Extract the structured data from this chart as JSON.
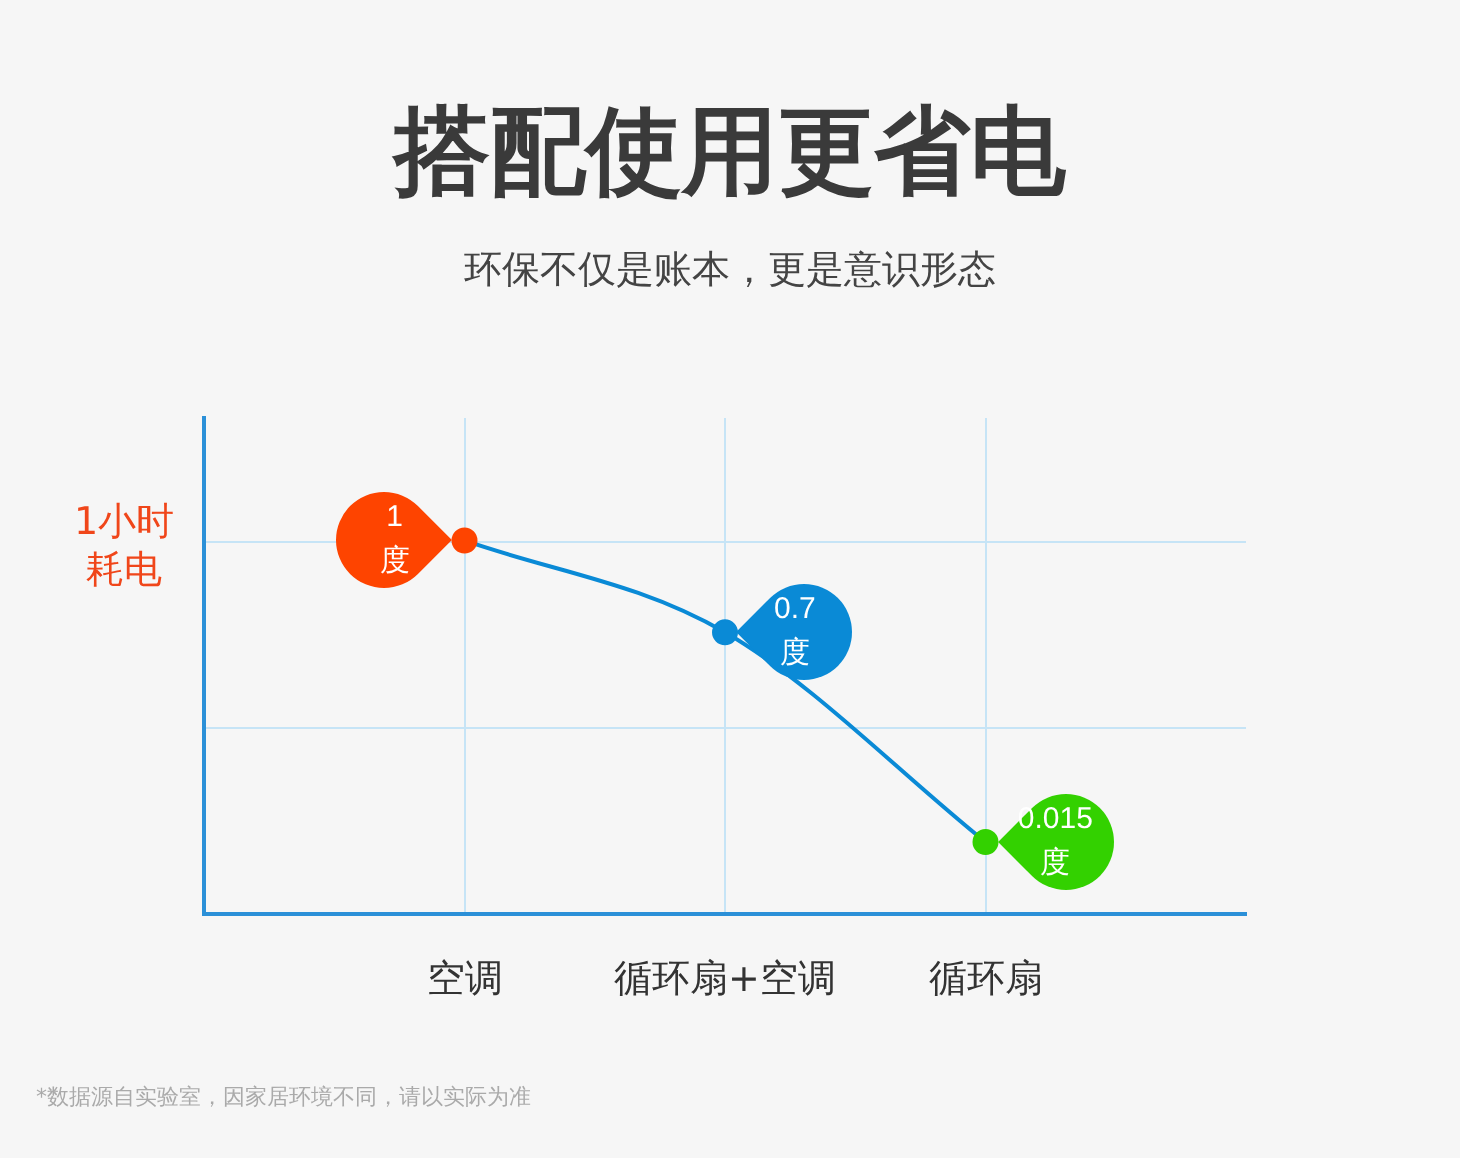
{
  "chart_data": {
    "type": "line",
    "title": "搭配使用更省电",
    "subtitle": "环保不仅是账本，更是意识形态",
    "ylabel": "1小时耗电",
    "annotations": [
      "*数据源自实验室，因家居环境不同，请以实际为准"
    ],
    "categories": [
      null,
      "空调",
      "循环扇+空调",
      "循环扇",
      null
    ],
    "values": [
      null,
      1,
      0.7,
      0.015,
      null
    ],
    "color": "#0a8ad6",
    "colors": [
      null,
      "#fe4400",
      "#0a8ad6",
      "#33d100",
      null
    ],
    "value_labels": [
      null,
      "1\n度",
      "0.7\n度",
      "0.015\n度",
      null
    ],
    "tick_labels": "x",
    "grid": true,
    "marker": "circle",
    "line_style": "solid"
  }
}
